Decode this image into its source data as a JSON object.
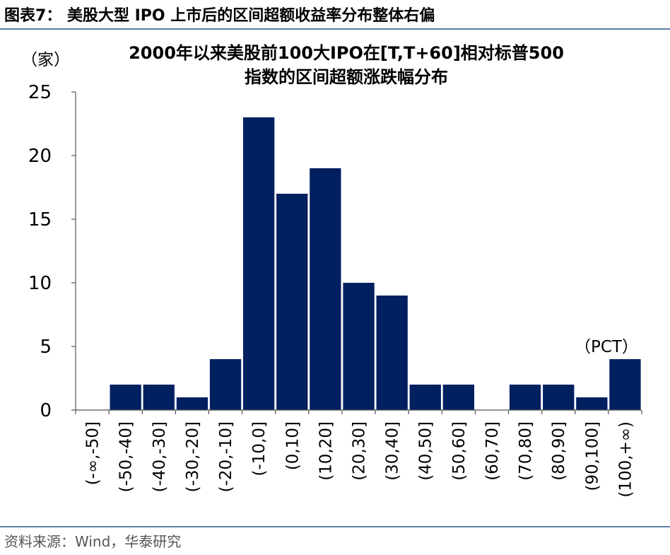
{
  "figure": {
    "title": "图表7： 美股大型 IPO 上市后的区间超额收益率分布整体右偏",
    "source": "资料来源：Wind，华泰研究"
  },
  "chart_data": {
    "type": "bar",
    "title_line1": "2000年以来美股前100大IPO在[T,T+60]相对标普500",
    "title_line2": "指数的区间超额涨跌幅分布",
    "y_unit": "（家）",
    "x_unit": "（PCT）",
    "categories": [
      "(-∞,-50]",
      "(-50,-40]",
      "(-40,-30]",
      "(-30,-20]",
      "(-20,-10]",
      "(-10,0]",
      "(0,10]",
      "(10,20]",
      "(20,30]",
      "(30,40]",
      "(40,50]",
      "(50,60]",
      "(60,70]",
      "(70,80]",
      "(80,90]",
      "(90,100]",
      "(100,+∞)"
    ],
    "values": [
      0,
      2,
      2,
      1,
      4,
      23,
      17,
      19,
      10,
      9,
      2,
      2,
      0,
      2,
      2,
      1,
      4
    ],
    "ylim": [
      0,
      25
    ],
    "yticks": [
      0,
      5,
      10,
      15,
      20,
      25
    ],
    "bar_color": "#002060",
    "grid": false,
    "legend": "none"
  }
}
